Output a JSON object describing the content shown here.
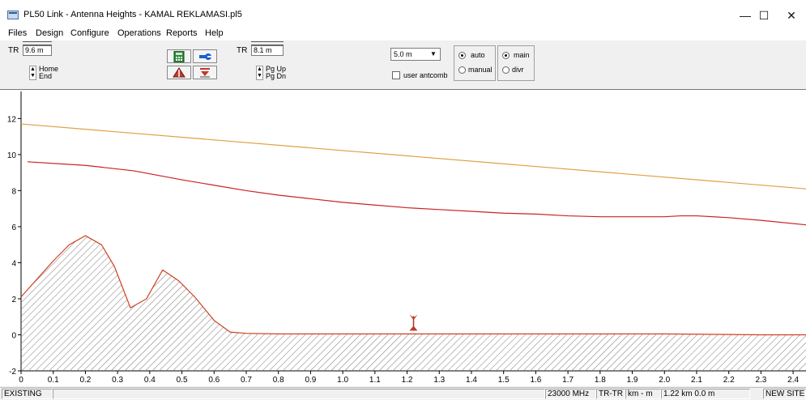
{
  "window": {
    "title": "PL50 Link - Antenna Heights - KAMAL REKLAMASI.pl5",
    "minimize": "—",
    "maximize": "☐",
    "close": "✕"
  },
  "menu": [
    "Files",
    "Design",
    "Configure",
    "Operations",
    "Reports",
    "Help"
  ],
  "toolbar": {
    "left_tr_label": "TR",
    "left_tr_value": "9.6 m",
    "left_spin_label_1": "Home",
    "left_spin_label_2": "End",
    "right_tr_label": "TR",
    "right_tr_value": "8.1 m",
    "right_spin_label_1": "Pg Up",
    "right_spin_label_2": "Pg Dn",
    "step_value": "5.0 m",
    "user_antcomb_label": "user antcomb",
    "user_antcomb_checked": false,
    "mode_options": [
      "auto",
      "manual"
    ],
    "mode_selected": "auto",
    "path_options": [
      "main",
      "divr"
    ],
    "path_selected": "main",
    "icons": [
      "calculator-icon",
      "wrench-icon",
      "antenna-icon",
      "marker-icon"
    ]
  },
  "chart_data": {
    "type": "line",
    "xlabel": "",
    "ylabel": "",
    "xlim": [
      0,
      2.44
    ],
    "ylim": [
      -2,
      13.5
    ],
    "x_ticks": [
      "0",
      "0.1",
      "0.2",
      "0.3",
      "0.4",
      "0.5",
      "0.6",
      "0.7",
      "0.8",
      "0.9",
      "1.0",
      "1.1",
      "1.2",
      "1.3",
      "1.4",
      "1.5",
      "1.6",
      "1.7",
      "1.8",
      "1.9",
      "2.0",
      "2.1",
      "2.2",
      "2.3",
      "2.4"
    ],
    "y_ticks": [
      "-2",
      "0",
      "2",
      "4",
      "6",
      "8",
      "10",
      "12"
    ],
    "series": [
      {
        "color": "#e0a040",
        "x": [
          0,
          2.44
        ],
        "y": [
          11.7,
          8.1
        ]
      },
      {
        "color": "#cc2222",
        "x": [
          0.02,
          0.2,
          0.35,
          0.5,
          0.6,
          0.7,
          0.8,
          0.9,
          1.0,
          1.1,
          1.2,
          1.3,
          1.4,
          1.5,
          1.6,
          1.7,
          1.8,
          1.9,
          2.0,
          2.05,
          2.1,
          2.2,
          2.3,
          2.44
        ],
        "y": [
          9.6,
          9.4,
          9.1,
          8.6,
          8.3,
          8.0,
          7.75,
          7.55,
          7.35,
          7.2,
          7.05,
          6.95,
          6.85,
          6.75,
          6.7,
          6.6,
          6.55,
          6.55,
          6.55,
          6.6,
          6.6,
          6.5,
          6.35,
          6.1
        ]
      },
      {
        "name": "terrain",
        "color": "#d04020",
        "x": [
          0,
          0.1,
          0.15,
          0.2,
          0.25,
          0.29,
          0.34,
          0.39,
          0.44,
          0.49,
          0.54,
          0.6,
          0.65,
          0.7,
          0.8,
          1.0,
          1.22,
          1.5,
          2.0,
          2.3,
          2.44
        ],
        "y": [
          2.1,
          4.1,
          5.0,
          5.5,
          5.0,
          3.8,
          1.5,
          2.0,
          3.6,
          3.0,
          2.1,
          0.8,
          0.15,
          0.08,
          0.05,
          0.05,
          0.05,
          0.05,
          0.05,
          0.0,
          0.0
        ]
      }
    ],
    "marker": {
      "x": 1.22,
      "y": 0.05
    }
  },
  "status": {
    "left": "EXISTING",
    "freq": "23000 MHz",
    "path": "TR-TR",
    "units": "km - m",
    "position": "1.22 km 0.0 m",
    "site": "NEW SITE"
  }
}
